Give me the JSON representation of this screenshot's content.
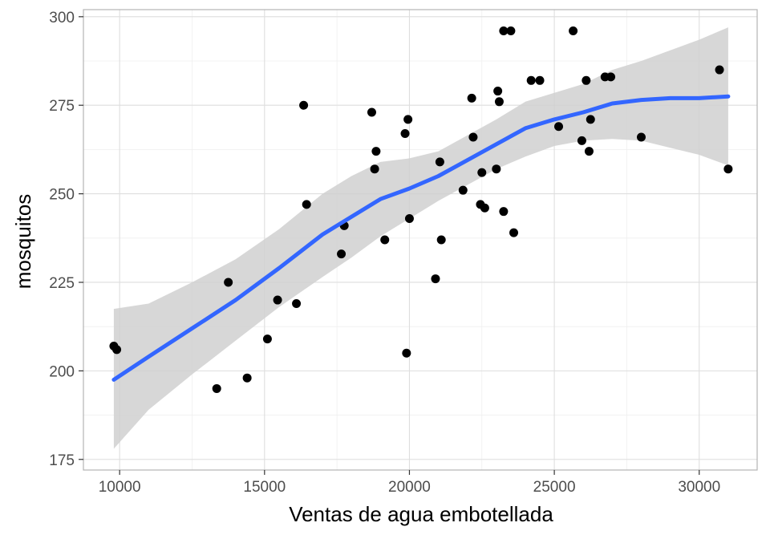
{
  "chart_data": {
    "type": "scatter",
    "xlabel": "Ventas de agua embotellada",
    "ylabel": "mosquitos",
    "xlim": [
      8750,
      32000
    ],
    "ylim": [
      172,
      302
    ],
    "x_ticks": [
      10000,
      15000,
      20000,
      25000,
      30000
    ],
    "y_ticks": [
      175,
      200,
      225,
      250,
      275,
      300
    ],
    "x_tick_labels": [
      "10000",
      "15000",
      "20000",
      "25000",
      "30000"
    ],
    "y_tick_labels": [
      "175",
      "200",
      "225",
      "250",
      "275",
      "300"
    ],
    "grid": true,
    "legend": "none",
    "points": [
      {
        "x": 9800,
        "y": 207
      },
      {
        "x": 9900,
        "y": 206
      },
      {
        "x": 13350,
        "y": 195
      },
      {
        "x": 13750,
        "y": 225
      },
      {
        "x": 14400,
        "y": 198
      },
      {
        "x": 15100,
        "y": 209
      },
      {
        "x": 15450,
        "y": 220
      },
      {
        "x": 16100,
        "y": 219
      },
      {
        "x": 16350,
        "y": 275
      },
      {
        "x": 16450,
        "y": 247
      },
      {
        "x": 17650,
        "y": 233
      },
      {
        "x": 17750,
        "y": 241
      },
      {
        "x": 18700,
        "y": 273
      },
      {
        "x": 18800,
        "y": 257
      },
      {
        "x": 18850,
        "y": 262
      },
      {
        "x": 19850,
        "y": 267
      },
      {
        "x": 19900,
        "y": 205
      },
      {
        "x": 19950,
        "y": 271
      },
      {
        "x": 20000,
        "y": 243
      },
      {
        "x": 19150,
        "y": 237
      },
      {
        "x": 20900,
        "y": 226
      },
      {
        "x": 21050,
        "y": 259
      },
      {
        "x": 21100,
        "y": 237
      },
      {
        "x": 21850,
        "y": 251
      },
      {
        "x": 22150,
        "y": 277
      },
      {
        "x": 22200,
        "y": 266
      },
      {
        "x": 22450,
        "y": 247
      },
      {
        "x": 22500,
        "y": 256
      },
      {
        "x": 22600,
        "y": 246
      },
      {
        "x": 23000,
        "y": 257
      },
      {
        "x": 23050,
        "y": 279
      },
      {
        "x": 23100,
        "y": 276
      },
      {
        "x": 23250,
        "y": 296
      },
      {
        "x": 23250,
        "y": 245
      },
      {
        "x": 23500,
        "y": 296
      },
      {
        "x": 23600,
        "y": 239
      },
      {
        "x": 24200,
        "y": 282
      },
      {
        "x": 24500,
        "y": 282
      },
      {
        "x": 25150,
        "y": 269
      },
      {
        "x": 25650,
        "y": 296
      },
      {
        "x": 25950,
        "y": 265
      },
      {
        "x": 26100,
        "y": 282
      },
      {
        "x": 26200,
        "y": 262
      },
      {
        "x": 26250,
        "y": 271
      },
      {
        "x": 26750,
        "y": 283
      },
      {
        "x": 26950,
        "y": 283
      },
      {
        "x": 28000,
        "y": 266
      },
      {
        "x": 30700,
        "y": 285
      },
      {
        "x": 31000,
        "y": 257
      }
    ],
    "smooth": {
      "x": [
        9800,
        11000,
        12500,
        14000,
        15500,
        17000,
        18000,
        19000,
        20000,
        21000,
        22000,
        23000,
        24000,
        25000,
        26000,
        27000,
        28000,
        29000,
        30000,
        31000
      ],
      "y": [
        197.5,
        204,
        212,
        220,
        229,
        238.5,
        243.5,
        248.5,
        251.5,
        255,
        259.5,
        264,
        268.5,
        271,
        273,
        275.5,
        276.5,
        277,
        277,
        277.5
      ],
      "lower": [
        178,
        189,
        199,
        208.5,
        218,
        226.5,
        232,
        238,
        243,
        248,
        252.5,
        257,
        260.5,
        263.5,
        265,
        265.5,
        265,
        263,
        261,
        258
      ],
      "upper": [
        217.5,
        219,
        225,
        231.5,
        240,
        250,
        255,
        259,
        260,
        262,
        266.5,
        271,
        276,
        278.5,
        281,
        285,
        287.5,
        290.5,
        293.5,
        297
      ]
    },
    "colors": {
      "point": "#000000",
      "line": "#3366ff",
      "band": "#d0d0d0",
      "grid_major": "#dedede",
      "grid_minor": "#efefef",
      "panel_border": "#b3b3b3"
    }
  }
}
